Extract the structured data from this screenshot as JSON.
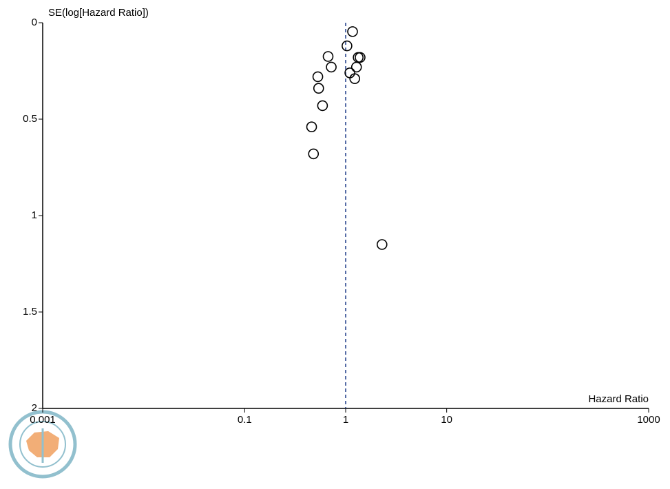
{
  "chart_data": {
    "type": "scatter",
    "y_label": "SE(log[Hazard Ratio])",
    "x_label": "Hazard Ratio",
    "x": [
      1.17,
      1.03,
      0.67,
      0.72,
      1.33,
      1.39,
      1.28,
      1.1,
      1.23,
      0.53,
      0.54,
      0.59,
      0.46,
      0.48,
      2.29
    ],
    "values": [
      0.046,
      0.12,
      0.175,
      0.23,
      0.18,
      0.18,
      0.23,
      0.26,
      0.29,
      0.28,
      0.34,
      0.43,
      0.54,
      0.68,
      1.15
    ],
    "color": "#000000",
    "reference_x": 1,
    "reference_color": "#1f3c88",
    "xlim": [
      0.001,
      1000
    ],
    "xticks": [
      0.001,
      0.1,
      1,
      10,
      1000
    ],
    "x_log": true,
    "ylim": [
      0,
      2
    ],
    "yticks": [
      0,
      0.5,
      1,
      1.5,
      2
    ],
    "y_inverted": true
  }
}
